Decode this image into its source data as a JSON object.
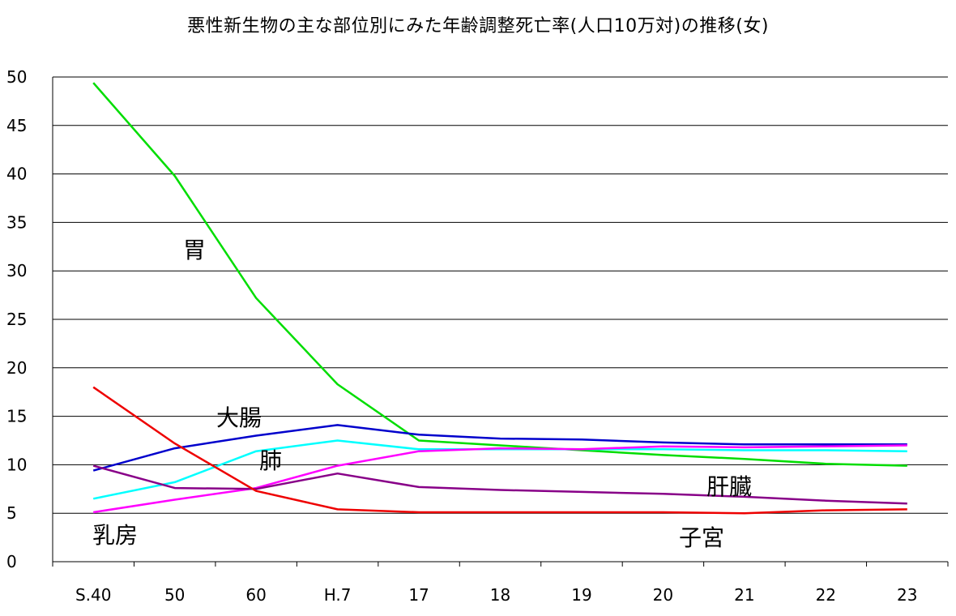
{
  "chart_data": {
    "type": "line",
    "title": "悪性新生物の主な部位別にみた年齢調整死亡率(人口10万対)の推移(女)",
    "xlabel": "",
    "ylabel": "",
    "ylim": [
      0,
      50
    ],
    "yticks": [
      "0",
      "5",
      "10",
      "15",
      "20",
      "25",
      "30",
      "35",
      "40",
      "45",
      "50"
    ],
    "categories": [
      "S.40",
      "50",
      "60",
      "H.7",
      "17",
      "18",
      "19",
      "20",
      "21",
      "22",
      "23"
    ],
    "grid": true,
    "legend": "none",
    "series": [
      {
        "name": "胃",
        "color": "#00dd00",
        "values": [
          49.4,
          39.8,
          27.2,
          18.3,
          12.5,
          12.0,
          11.5,
          11.0,
          10.6,
          10.1,
          9.9
        ]
      },
      {
        "name": "大腸",
        "color": "#0000cc",
        "values": [
          9.4,
          11.7,
          13.0,
          14.1,
          13.1,
          12.7,
          12.6,
          12.3,
          12.1,
          12.1,
          12.1
        ]
      },
      {
        "name": "肺",
        "color": "#00ffff",
        "values": [
          6.5,
          8.2,
          11.4,
          12.5,
          11.6,
          11.6,
          11.6,
          11.6,
          11.5,
          11.5,
          11.4
        ]
      },
      {
        "name": "乳房",
        "color": "#ff00ff",
        "values": [
          5.1,
          6.4,
          7.6,
          9.9,
          11.4,
          11.7,
          11.6,
          11.9,
          11.8,
          11.9,
          12.0
        ]
      },
      {
        "name": "肝臓",
        "color": "#880088",
        "values": [
          9.9,
          7.6,
          7.5,
          9.1,
          7.7,
          7.4,
          7.2,
          7.0,
          6.7,
          6.3,
          6.0
        ]
      },
      {
        "name": "子宮",
        "color": "#ee0000",
        "values": [
          18.0,
          12.2,
          7.3,
          5.4,
          5.1,
          5.1,
          5.1,
          5.1,
          5.0,
          5.3,
          5.4
        ]
      }
    ],
    "annotations": [
      {
        "text": "胃",
        "series": "胃"
      },
      {
        "text": "大腸",
        "series": "大腸"
      },
      {
        "text": "肺",
        "series": "肺"
      },
      {
        "text": "乳房",
        "series": "乳房"
      },
      {
        "text": "肝臓",
        "series": "肝臓"
      },
      {
        "text": "子宮",
        "series": "子宮"
      }
    ]
  }
}
